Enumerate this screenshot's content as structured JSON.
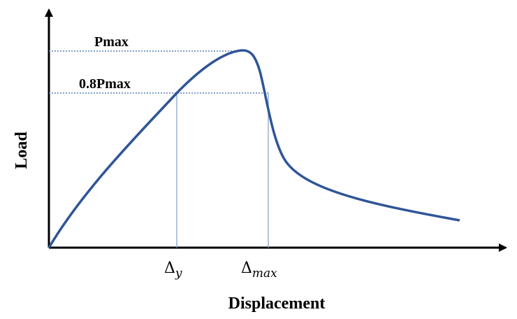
{
  "axes": {
    "y_label": "Load",
    "x_label": "Displacement"
  },
  "levels": {
    "peak": "Pmax",
    "yield": "0.8Pmax"
  },
  "displacements": {
    "yield": {
      "symbol": "Δ",
      "subscript": "y"
    },
    "max": {
      "symbol": "Δ",
      "subscript": "max"
    }
  }
}
